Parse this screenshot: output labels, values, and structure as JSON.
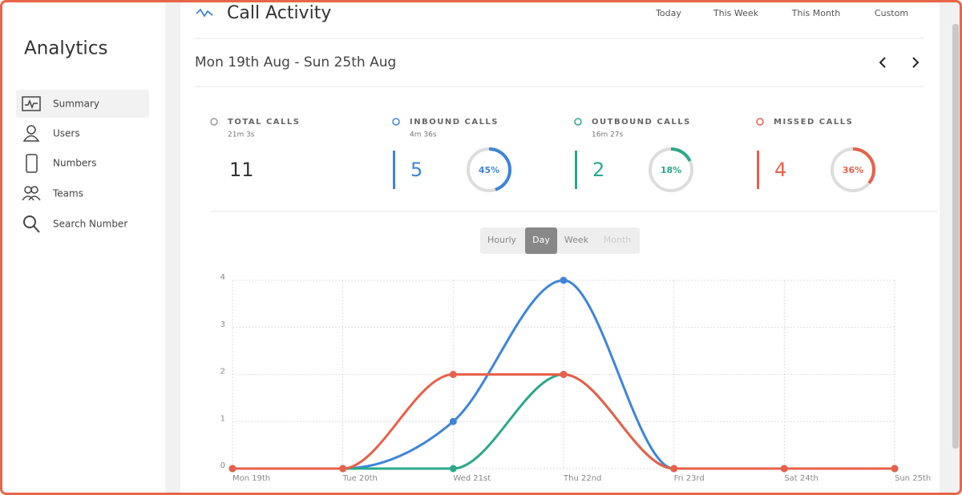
{
  "sidebar": {
    "title": "Analytics",
    "items": [
      "Summary",
      "Users",
      "Numbers",
      "Teams",
      "Search Number"
    ]
  },
  "header": {
    "title": "Call Activity",
    "tabs": [
      "Today",
      "This Week",
      "This Month",
      "Custom"
    ],
    "date_range": "Mon 19th Aug - Sun 25th Aug"
  },
  "stats": [
    {
      "label": "TOTAL CALLS",
      "duration": "21m 3s",
      "count": 11
    },
    {
      "label": "INBOUND CALLS",
      "duration": "4m 36s",
      "count": 5,
      "percent": 45,
      "percent_label": "45%",
      "color": "#3d85d8"
    },
    {
      "label": "OUTBOUND CALLS",
      "duration": "16m 27s",
      "count": 2,
      "percent": 18,
      "percent_label": "18%",
      "color": "#2aa88a"
    },
    {
      "label": "MISSED CALLS",
      "count": 4,
      "percent": 36,
      "percent_label": "36%",
      "color": "#e8604a"
    }
  ],
  "granularity": [
    "Hourly",
    "Day",
    "Week",
    "Month"
  ],
  "chart_data": {
    "type": "line",
    "categories": [
      "Mon 19th",
      "Tue 20th",
      "Wed 21st",
      "Thu 22nd",
      "Fri 23rd",
      "Sat 24th",
      "Sun 25th"
    ],
    "series": [
      {
        "color": "#3d85d8",
        "values": [
          0,
          0,
          1,
          4,
          0,
          0,
          0
        ]
      },
      {
        "color": "#2aa88a",
        "values": [
          0,
          0,
          0,
          2,
          0,
          0,
          0
        ]
      },
      {
        "color": "#e8604a",
        "values": [
          0,
          0,
          2,
          2,
          0,
          0,
          0
        ]
      }
    ],
    "ylim": [
      0,
      4
    ],
    "yticks": [
      0,
      1,
      2,
      3,
      4
    ],
    "grid": true
  }
}
